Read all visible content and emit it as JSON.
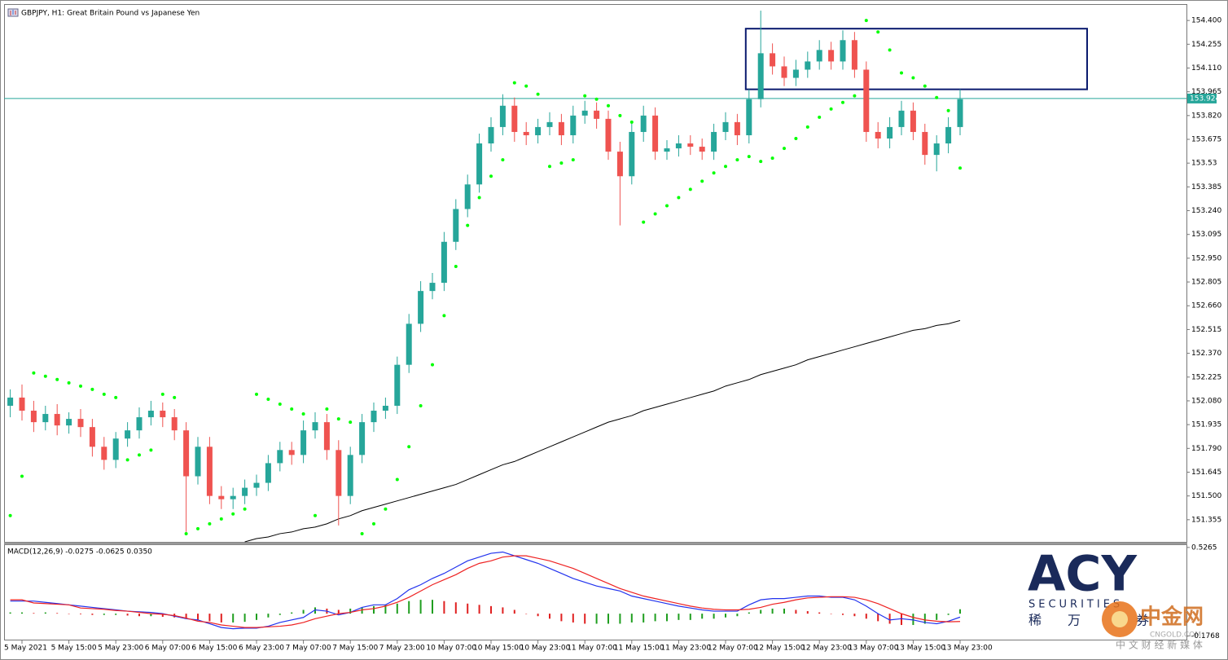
{
  "chart_data": [
    {
      "type": "candlestick",
      "title": "GBPJPY, H1:  Great Britain Pound vs Japanese Yen",
      "categories": [
        null,
        "5 May 2021",
        null,
        null,
        null,
        "5 May 15:00",
        null,
        null,
        null,
        "5 May 23:00",
        null,
        null,
        null,
        "6 May 07:00",
        null,
        null,
        null,
        "6 May 15:00",
        null,
        null,
        null,
        "6 May 23:00",
        null,
        null,
        null,
        "7 May 07:00",
        null,
        null,
        null,
        "7 May 15:00",
        null,
        null,
        null,
        "7 May 23:00",
        null,
        null,
        null,
        "10 May 07:00",
        null,
        null,
        null,
        "10 May 15:00",
        null,
        null,
        null,
        "10 May 23:00",
        null,
        null,
        null,
        "11 May 07:00",
        null,
        null,
        null,
        "11 May 15:00",
        null,
        null,
        null,
        "11 May 23:00",
        null,
        null,
        null,
        "12 May 07:00",
        null,
        null,
        null,
        "12 May 15:00",
        null,
        null,
        null,
        "12 May 23:00",
        null,
        null,
        null,
        "13 May 07:00",
        null,
        null,
        null,
        "13 May 15:00",
        null,
        null,
        null,
        "13 May 23:00"
      ],
      "open": [
        152.05,
        152.1,
        152.02,
        151.95,
        152.0,
        151.93,
        151.97,
        151.92,
        151.8,
        151.72,
        151.85,
        151.9,
        151.98,
        152.02,
        151.98,
        151.9,
        151.62,
        151.8,
        151.5,
        151.48,
        151.5,
        151.55,
        151.58,
        151.7,
        151.78,
        151.75,
        151.9,
        151.95,
        151.78,
        151.5,
        151.75,
        151.95,
        152.02,
        152.05,
        152.3,
        152.55,
        152.75,
        152.8,
        153.05,
        153.25,
        153.4,
        153.65,
        153.75,
        153.88,
        153.72,
        153.7,
        153.75,
        153.78,
        153.7,
        153.82,
        153.85,
        153.8,
        153.6,
        153.45,
        153.72,
        153.82,
        153.6,
        153.62,
        153.65,
        153.63,
        153.6,
        153.72,
        153.78,
        153.7,
        153.92,
        154.2,
        154.12,
        154.05,
        154.1,
        154.15,
        154.22,
        154.15,
        154.28,
        154.1,
        153.72,
        153.68,
        153.75,
        153.85,
        153.72,
        153.58,
        153.65,
        153.75
      ],
      "high": [
        152.15,
        152.18,
        152.08,
        152.05,
        152.06,
        152.01,
        152.03,
        151.97,
        151.86,
        151.89,
        151.95,
        152.04,
        152.08,
        152.07,
        152.03,
        151.95,
        151.86,
        151.86,
        151.56,
        151.55,
        151.6,
        151.63,
        151.75,
        151.83,
        151.83,
        151.96,
        152.01,
        152.0,
        151.84,
        151.8,
        152.0,
        152.07,
        152.1,
        152.35,
        152.61,
        152.81,
        152.86,
        153.11,
        153.31,
        153.46,
        153.71,
        153.81,
        153.95,
        153.93,
        153.78,
        153.8,
        153.84,
        153.83,
        153.88,
        153.91,
        153.9,
        153.85,
        153.66,
        153.78,
        153.88,
        153.87,
        153.67,
        153.7,
        153.7,
        153.68,
        153.77,
        153.84,
        153.83,
        153.98,
        154.46,
        154.26,
        154.18,
        154.16,
        154.21,
        154.28,
        154.27,
        154.34,
        154.33,
        154.15,
        153.78,
        153.81,
        153.91,
        153.9,
        153.77,
        153.7,
        153.81,
        153.98
      ],
      "low": [
        151.98,
        151.96,
        151.89,
        151.9,
        151.87,
        151.88,
        151.86,
        151.74,
        151.66,
        151.67,
        151.8,
        151.85,
        151.93,
        151.92,
        151.84,
        151.28,
        151.57,
        151.45,
        151.42,
        151.42,
        151.45,
        151.5,
        151.53,
        151.65,
        151.69,
        151.7,
        151.85,
        151.72,
        151.32,
        151.45,
        151.7,
        151.89,
        151.97,
        152.0,
        152.25,
        152.5,
        152.7,
        152.75,
        153.0,
        153.2,
        153.35,
        153.6,
        153.7,
        153.66,
        153.64,
        153.65,
        153.7,
        153.64,
        153.65,
        153.77,
        153.74,
        153.55,
        153.15,
        153.4,
        153.66,
        153.55,
        153.55,
        153.57,
        153.58,
        153.55,
        153.55,
        153.67,
        153.64,
        153.65,
        153.87,
        154.07,
        154.0,
        154.0,
        154.05,
        154.1,
        154.1,
        154.1,
        154.05,
        153.66,
        153.62,
        153.62,
        153.7,
        153.67,
        153.52,
        153.48,
        153.59,
        153.7
      ],
      "close": [
        152.1,
        152.02,
        151.95,
        152.0,
        151.93,
        151.97,
        151.92,
        151.8,
        151.72,
        151.85,
        151.9,
        151.98,
        152.02,
        151.98,
        151.9,
        151.62,
        151.8,
        151.5,
        151.48,
        151.5,
        151.55,
        151.58,
        151.7,
        151.78,
        151.75,
        151.9,
        151.95,
        151.78,
        151.5,
        151.75,
        151.95,
        152.02,
        152.05,
        152.3,
        152.55,
        152.75,
        152.8,
        153.05,
        153.25,
        153.4,
        153.65,
        153.75,
        153.88,
        153.72,
        153.7,
        153.75,
        153.78,
        153.7,
        153.82,
        153.85,
        153.8,
        153.6,
        153.45,
        153.72,
        153.82,
        153.6,
        153.62,
        153.65,
        153.63,
        153.6,
        153.72,
        153.78,
        153.7,
        153.92,
        154.2,
        154.12,
        154.05,
        154.1,
        154.15,
        154.22,
        154.15,
        154.28,
        154.1,
        153.72,
        153.68,
        153.75,
        153.85,
        153.72,
        153.58,
        153.65,
        153.75,
        153.92
      ],
      "up_color": "#26a69a",
      "down_color": "#ef5350",
      "sar": {
        "color": "#00ff00",
        "values": [
          151.38,
          151.62,
          152.25,
          152.23,
          152.21,
          152.19,
          152.17,
          152.15,
          152.12,
          152.1,
          151.72,
          151.75,
          151.78,
          152.12,
          152.1,
          151.27,
          151.3,
          151.33,
          151.36,
          151.39,
          151.42,
          152.12,
          152.09,
          152.06,
          152.03,
          152.0,
          151.38,
          152.03,
          151.97,
          151.95,
          151.27,
          151.33,
          151.42,
          151.6,
          151.8,
          152.05,
          152.3,
          152.6,
          152.9,
          153.15,
          153.32,
          153.45,
          153.55,
          154.02,
          154.0,
          153.95,
          153.51,
          153.53,
          153.55,
          153.94,
          153.92,
          153.88,
          153.82,
          153.78,
          153.17,
          153.22,
          153.27,
          153.32,
          153.37,
          153.42,
          153.47,
          153.51,
          153.55,
          153.57,
          153.54,
          153.56,
          153.62,
          153.68,
          153.75,
          153.81,
          153.86,
          153.9,
          153.94,
          154.4,
          154.33,
          154.22,
          154.08,
          154.05,
          154.0,
          153.93,
          153.85,
          153.5
        ]
      },
      "ma": {
        "color": "#000000",
        "values": [
          null,
          null,
          null,
          null,
          null,
          null,
          null,
          null,
          null,
          null,
          null,
          null,
          null,
          null,
          null,
          null,
          null,
          null,
          null,
          null,
          151.22,
          151.24,
          151.25,
          151.27,
          151.28,
          151.3,
          151.31,
          151.33,
          151.36,
          151.38,
          151.41,
          151.43,
          151.45,
          151.47,
          151.49,
          151.51,
          151.53,
          151.55,
          151.57,
          151.6,
          151.63,
          151.66,
          151.69,
          151.71,
          151.74,
          151.77,
          151.8,
          151.83,
          151.86,
          151.89,
          151.92,
          151.95,
          151.97,
          151.99,
          152.02,
          152.04,
          152.06,
          152.08,
          152.1,
          152.12,
          152.14,
          152.17,
          152.19,
          152.21,
          152.24,
          152.26,
          152.28,
          152.3,
          152.33,
          152.35,
          152.37,
          152.39,
          152.41,
          152.43,
          152.45,
          152.47,
          152.49,
          152.51,
          152.52,
          152.54,
          152.55,
          152.57
        ]
      },
      "last": 153.924,
      "last_color": "#26a69a",
      "zone": [
        153.98,
        154.35
      ],
      "zone_color": "#0a1a6e",
      "ylim": [
        151.22,
        154.5
      ],
      "yticks": [
        {
          "value": 154.4,
          "label": "154.400"
        },
        154.255,
        {
          "value": 154.11,
          "label": "154.110"
        },
        153.965,
        {
          "value": 153.82,
          "label": "153.820"
        },
        153.675,
        153.53,
        153.385,
        {
          "value": 153.24,
          "label": "153.240"
        },
        153.095,
        {
          "value": 152.95,
          "label": "152.950"
        },
        152.805,
        {
          "value": 152.66,
          "label": "152.660"
        },
        152.515,
        {
          "value": 152.37,
          "label": "152.370"
        },
        152.225,
        {
          "value": 152.08,
          "label": "152.080"
        },
        151.935,
        {
          "value": 151.79,
          "label": "151.790"
        },
        151.645,
        {
          "value": 151.5,
          "label": "151.500"
        },
        151.355
      ]
    },
    {
      "type": "macd",
      "title": "MACD(12,26,9) -0.0275 -0.0625 0.0350",
      "series": [
        {
          "color": "#2233ee",
          "values": [
            0.1,
            0.1,
            0.1,
            0.09,
            0.08,
            0.07,
            0.06,
            0.05,
            0.04,
            0.03,
            0.02,
            0.015,
            0.01,
            0.0,
            -0.02,
            -0.04,
            -0.05,
            -0.08,
            -0.11,
            -0.12,
            -0.115,
            -0.115,
            -0.1,
            -0.07,
            -0.05,
            -0.03,
            0.03,
            0.02,
            -0.01,
            0.01,
            0.05,
            0.07,
            0.07,
            0.12,
            0.19,
            0.23,
            0.28,
            0.32,
            0.37,
            0.42,
            0.45,
            0.48,
            0.49,
            0.46,
            0.43,
            0.4,
            0.36,
            0.32,
            0.28,
            0.25,
            0.22,
            0.2,
            0.18,
            0.14,
            0.12,
            0.1,
            0.08,
            0.06,
            0.045,
            0.03,
            0.02,
            0.02,
            0.02,
            0.07,
            0.11,
            0.12,
            0.12,
            0.13,
            0.14,
            0.14,
            0.13,
            0.13,
            0.11,
            0.06,
            0.0,
            -0.05,
            -0.04,
            -0.05,
            -0.07,
            -0.08,
            -0.06,
            -0.0275
          ]
        },
        {
          "color": "#ee2222",
          "values": [
            0.11,
            0.11,
            0.085,
            0.08,
            0.075,
            0.07,
            0.045,
            0.04,
            0.035,
            0.025,
            0.02,
            0.01,
            0.0,
            -0.005,
            -0.015,
            -0.035,
            -0.06,
            -0.07,
            -0.09,
            -0.1,
            -0.11,
            -0.11,
            -0.105,
            -0.1,
            -0.09,
            -0.07,
            -0.04,
            -0.02,
            0.0,
            0.01,
            0.03,
            0.04,
            0.06,
            0.09,
            0.13,
            0.18,
            0.23,
            0.27,
            0.31,
            0.36,
            0.4,
            0.42,
            0.45,
            0.46,
            0.46,
            0.44,
            0.42,
            0.39,
            0.36,
            0.32,
            0.28,
            0.24,
            0.2,
            0.17,
            0.14,
            0.12,
            0.1,
            0.08,
            0.06,
            0.045,
            0.035,
            0.03,
            0.03,
            0.035,
            0.05,
            0.075,
            0.09,
            0.11,
            0.125,
            0.13,
            0.135,
            0.135,
            0.13,
            0.11,
            0.08,
            0.04,
            0.0,
            -0.03,
            -0.05,
            -0.06,
            -0.065,
            -0.0625
          ]
        }
      ],
      "histogram": {
        "up_color": "#1f9e1f",
        "down_color": "#e02020",
        "values": [
          0.01,
          0.01,
          0.005,
          0.01,
          0.005,
          0.0,
          -0.005,
          -0.01,
          -0.01,
          -0.01,
          -0.015,
          -0.02,
          -0.02,
          -0.025,
          -0.03,
          -0.04,
          -0.05,
          -0.06,
          -0.07,
          -0.07,
          -0.065,
          -0.05,
          -0.03,
          -0.01,
          0.01,
          0.03,
          0.05,
          0.04,
          0.03,
          0.04,
          0.05,
          0.06,
          0.07,
          0.08,
          0.1,
          0.11,
          0.11,
          0.1,
          0.09,
          0.08,
          0.07,
          0.06,
          0.05,
          0.03,
          0.0,
          -0.02,
          -0.04,
          -0.06,
          -0.07,
          -0.08,
          -0.08,
          -0.08,
          -0.08,
          -0.07,
          -0.07,
          -0.06,
          -0.06,
          -0.05,
          -0.05,
          -0.04,
          -0.04,
          -0.03,
          -0.02,
          0.01,
          0.03,
          0.04,
          0.04,
          0.03,
          0.02,
          0.01,
          0.0,
          -0.01,
          -0.02,
          -0.04,
          -0.06,
          -0.08,
          -0.09,
          -0.09,
          -0.08,
          -0.05,
          -0.01,
          0.035
        ]
      },
      "ylim": [
        -0.2,
        0.545
      ],
      "yticks": [
        0.5265,
        -0.1768
      ]
    }
  ],
  "logo": {
    "name": "ACY",
    "sub": "SECURITIES",
    "cn": [
      "稀",
      "万",
      "券"
    ]
  },
  "watermark": {
    "name": "中金网",
    "site": "CNGOLD.COM",
    "tagline": "中 文 财 经 新 媒 体"
  }
}
